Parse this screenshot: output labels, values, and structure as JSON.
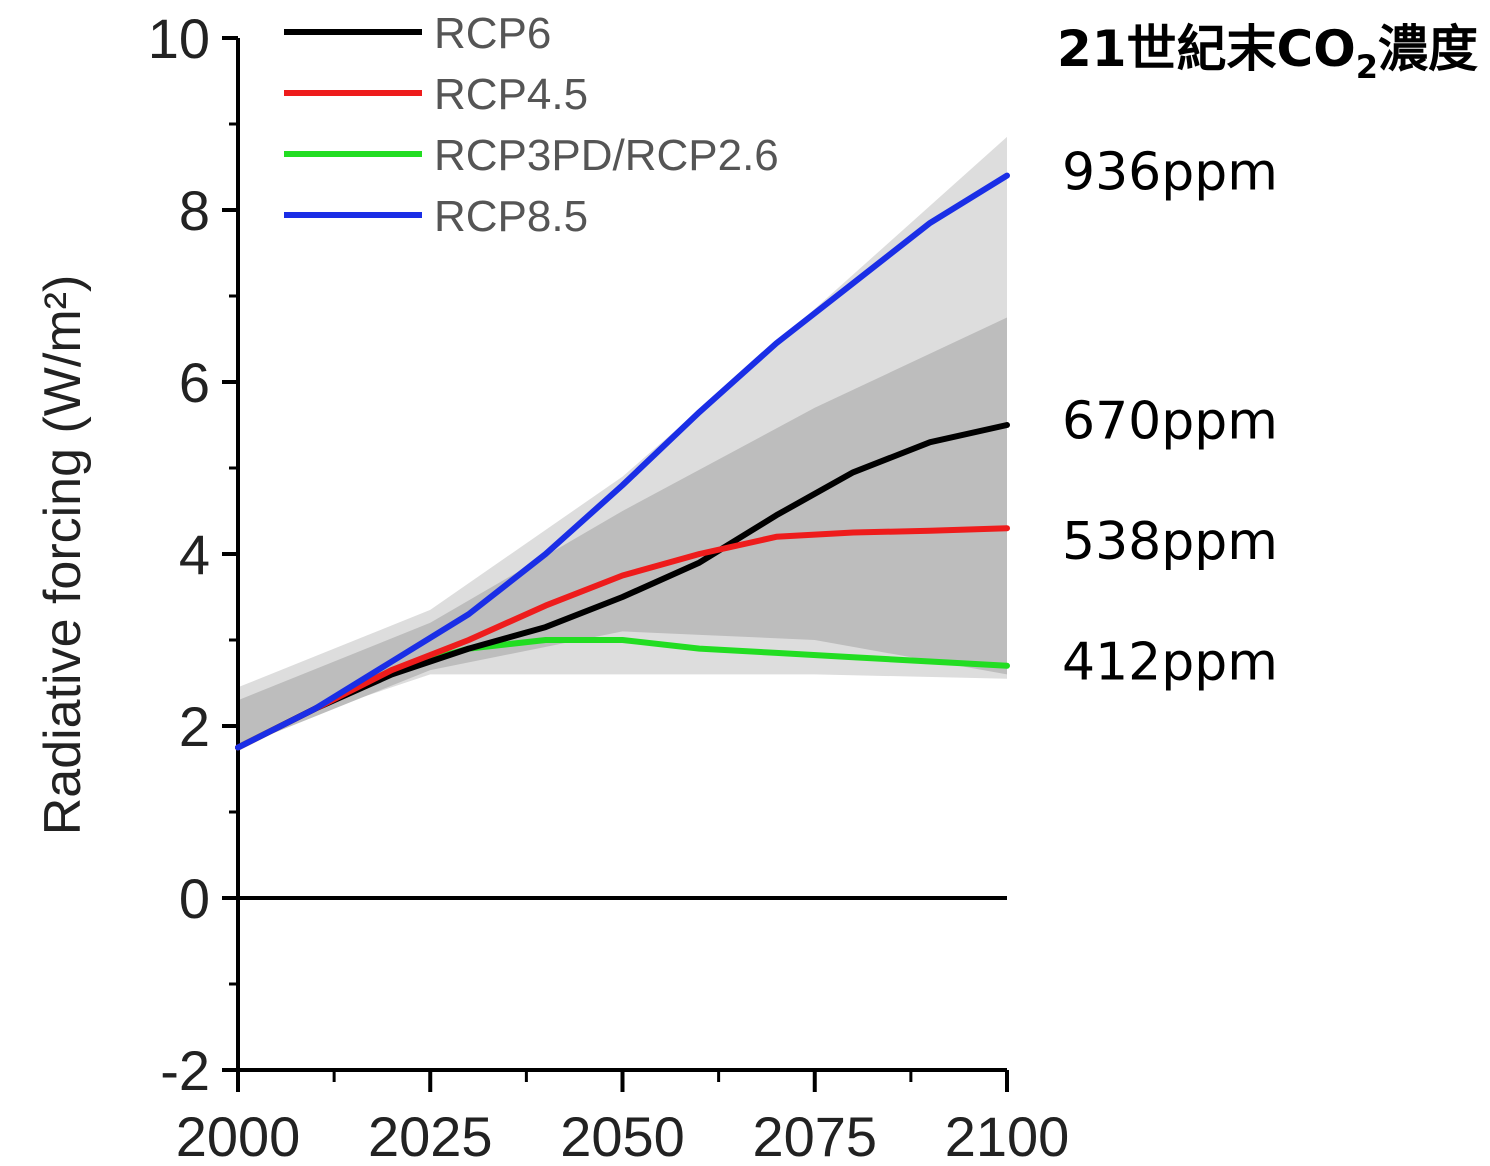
{
  "chart_data": {
    "type": "line",
    "title": "",
    "xlabel": "",
    "ylabel": "Radiative forcing (W/m²)",
    "xlim": [
      2000,
      2100
    ],
    "ylim": [
      -2,
      10
    ],
    "xticks": [
      "2000",
      "2025",
      "2050",
      "2075",
      "2100"
    ],
    "yticks": [
      "-2",
      "0",
      "2",
      "4",
      "6",
      "8",
      "10"
    ],
    "legend_position": "top-left",
    "grid": false,
    "series": [
      {
        "name": "RCP6",
        "color": "#000000",
        "x": [
          2000,
          2010,
          2020,
          2030,
          2040,
          2050,
          2060,
          2070,
          2080,
          2090,
          2100
        ],
        "y": [
          1.75,
          2.2,
          2.6,
          2.9,
          3.15,
          3.5,
          3.9,
          4.45,
          4.95,
          5.3,
          5.5
        ]
      },
      {
        "name": "RCP4.5",
        "color": "#ee1c1c",
        "x": [
          2000,
          2010,
          2020,
          2030,
          2040,
          2050,
          2060,
          2070,
          2080,
          2090,
          2100
        ],
        "y": [
          1.75,
          2.2,
          2.65,
          3.0,
          3.4,
          3.75,
          4.0,
          4.2,
          4.25,
          4.27,
          4.3
        ]
      },
      {
        "name": "RCP3PD/RCP2.6",
        "color": "#22dd22",
        "x": [
          2000,
          2010,
          2020,
          2030,
          2040,
          2050,
          2060,
          2070,
          2080,
          2090,
          2100
        ],
        "y": [
          1.75,
          2.2,
          2.65,
          2.9,
          3.0,
          3.0,
          2.9,
          2.85,
          2.8,
          2.75,
          2.7
        ]
      },
      {
        "name": "RCP8.5",
        "color": "#1a2ee6",
        "x": [
          2000,
          2010,
          2020,
          2030,
          2040,
          2050,
          2060,
          2070,
          2080,
          2090,
          2100
        ],
        "y": [
          1.75,
          2.2,
          2.75,
          3.3,
          4.0,
          4.8,
          5.65,
          6.45,
          7.15,
          7.85,
          8.4
        ]
      }
    ],
    "bands": [
      {
        "name": "outer range",
        "color": "#dddddd",
        "x": [
          2000,
          2025,
          2050,
          2075,
          2100
        ],
        "lower": [
          1.85,
          2.6,
          2.6,
          2.6,
          2.55
        ],
        "upper": [
          2.45,
          3.35,
          4.9,
          6.85,
          8.85
        ]
      },
      {
        "name": "inner range",
        "color": "#bdbdbd",
        "x": [
          2000,
          2025,
          2050,
          2075,
          2100
        ],
        "lower": [
          1.75,
          2.65,
          3.1,
          3.0,
          2.6
        ],
        "upper": [
          2.3,
          3.2,
          4.5,
          5.7,
          6.75
        ]
      }
    ],
    "annotations": {
      "header": {
        "prefix": "21世紀末CO",
        "subscript": "2",
        "suffix": "濃度"
      },
      "labels": [
        {
          "text": "936ppm",
          "y": 8.45
        },
        {
          "text": "670ppm",
          "y": 5.55
        },
        {
          "text": "538ppm",
          "y": 4.15
        },
        {
          "text": "412ppm",
          "y": 2.75
        }
      ]
    }
  }
}
